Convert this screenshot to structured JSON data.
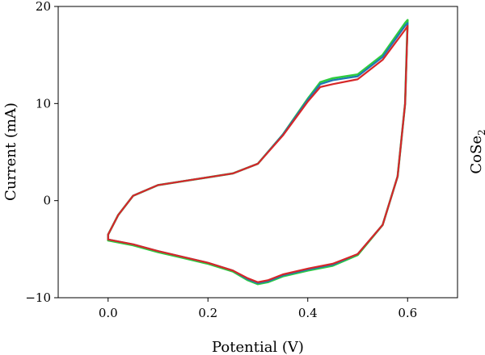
{
  "chart_data": {
    "type": "line",
    "xlabel": "Potential (V)",
    "ylabel": "Current (mA)",
    "side_label_main": "CoSe",
    "side_label_sub": "2",
    "xlim": [
      -0.1,
      0.7
    ],
    "ylim": [
      -10,
      20
    ],
    "xticks": [
      0.0,
      0.2,
      0.4,
      0.6
    ],
    "xtick_labels": [
      "0.0",
      "0.2",
      "0.4",
      "0.6"
    ],
    "yticks": [
      -10,
      0,
      10,
      20
    ],
    "ytick_labels": [
      "−10",
      "0",
      "10",
      "20"
    ],
    "grid": false,
    "series": [
      {
        "color": "#2ecc40",
        "points": [
          [
            0.0,
            -4.1
          ],
          [
            0.05,
            -4.6
          ],
          [
            0.1,
            -5.3
          ],
          [
            0.15,
            -5.9
          ],
          [
            0.2,
            -6.5
          ],
          [
            0.25,
            -7.3
          ],
          [
            0.28,
            -8.2
          ],
          [
            0.3,
            -8.6
          ],
          [
            0.32,
            -8.4
          ],
          [
            0.35,
            -7.8
          ],
          [
            0.4,
            -7.2
          ],
          [
            0.45,
            -6.7
          ],
          [
            0.5,
            -5.6
          ],
          [
            0.55,
            -2.5
          ],
          [
            0.58,
            2.5
          ],
          [
            0.595,
            10.0
          ],
          [
            0.6,
            18.6
          ],
          [
            0.595,
            18.3
          ],
          [
            0.55,
            15.0
          ],
          [
            0.5,
            13.0
          ],
          [
            0.45,
            12.6
          ],
          [
            0.425,
            12.2
          ],
          [
            0.4,
            10.5
          ],
          [
            0.35,
            6.8
          ],
          [
            0.3,
            3.8
          ],
          [
            0.25,
            2.8
          ],
          [
            0.2,
            2.4
          ],
          [
            0.15,
            2.0
          ],
          [
            0.1,
            1.6
          ],
          [
            0.05,
            0.5
          ],
          [
            0.02,
            -1.5
          ],
          [
            0.0,
            -3.5
          ],
          [
            0.0,
            -4.1
          ]
        ]
      },
      {
        "color": "#1f77b4",
        "points": [
          [
            0.0,
            -4.0
          ],
          [
            0.05,
            -4.5
          ],
          [
            0.1,
            -5.2
          ],
          [
            0.15,
            -5.8
          ],
          [
            0.2,
            -6.4
          ],
          [
            0.25,
            -7.2
          ],
          [
            0.28,
            -8.1
          ],
          [
            0.3,
            -8.5
          ],
          [
            0.32,
            -8.3
          ],
          [
            0.35,
            -7.7
          ],
          [
            0.4,
            -7.1
          ],
          [
            0.45,
            -6.6
          ],
          [
            0.5,
            -5.5
          ],
          [
            0.55,
            -2.5
          ],
          [
            0.58,
            2.5
          ],
          [
            0.595,
            10.0
          ],
          [
            0.6,
            18.3
          ],
          [
            0.595,
            18.0
          ],
          [
            0.55,
            14.8
          ],
          [
            0.5,
            12.8
          ],
          [
            0.45,
            12.4
          ],
          [
            0.425,
            12.0
          ],
          [
            0.4,
            10.4
          ],
          [
            0.35,
            6.8
          ],
          [
            0.3,
            3.8
          ],
          [
            0.25,
            2.8
          ],
          [
            0.2,
            2.4
          ],
          [
            0.15,
            2.0
          ],
          [
            0.1,
            1.6
          ],
          [
            0.05,
            0.5
          ],
          [
            0.02,
            -1.5
          ],
          [
            0.0,
            -3.5
          ],
          [
            0.0,
            -4.0
          ]
        ]
      },
      {
        "color": "#d62728",
        "points": [
          [
            0.0,
            -4.0
          ],
          [
            0.05,
            -4.5
          ],
          [
            0.1,
            -5.2
          ],
          [
            0.15,
            -5.8
          ],
          [
            0.2,
            -6.4
          ],
          [
            0.25,
            -7.2
          ],
          [
            0.28,
            -8.0
          ],
          [
            0.3,
            -8.4
          ],
          [
            0.32,
            -8.2
          ],
          [
            0.35,
            -7.6
          ],
          [
            0.4,
            -7.0
          ],
          [
            0.45,
            -6.5
          ],
          [
            0.5,
            -5.5
          ],
          [
            0.55,
            -2.5
          ],
          [
            0.58,
            2.5
          ],
          [
            0.595,
            10.0
          ],
          [
            0.6,
            18.0
          ],
          [
            0.595,
            17.6
          ],
          [
            0.55,
            14.5
          ],
          [
            0.5,
            12.5
          ],
          [
            0.45,
            12.0
          ],
          [
            0.425,
            11.7
          ],
          [
            0.4,
            10.2
          ],
          [
            0.35,
            6.7
          ],
          [
            0.3,
            3.8
          ],
          [
            0.25,
            2.8
          ],
          [
            0.2,
            2.4
          ],
          [
            0.15,
            2.0
          ],
          [
            0.1,
            1.6
          ],
          [
            0.05,
            0.5
          ],
          [
            0.02,
            -1.5
          ],
          [
            0.0,
            -3.5
          ],
          [
            0.0,
            -4.0
          ]
        ]
      }
    ]
  }
}
